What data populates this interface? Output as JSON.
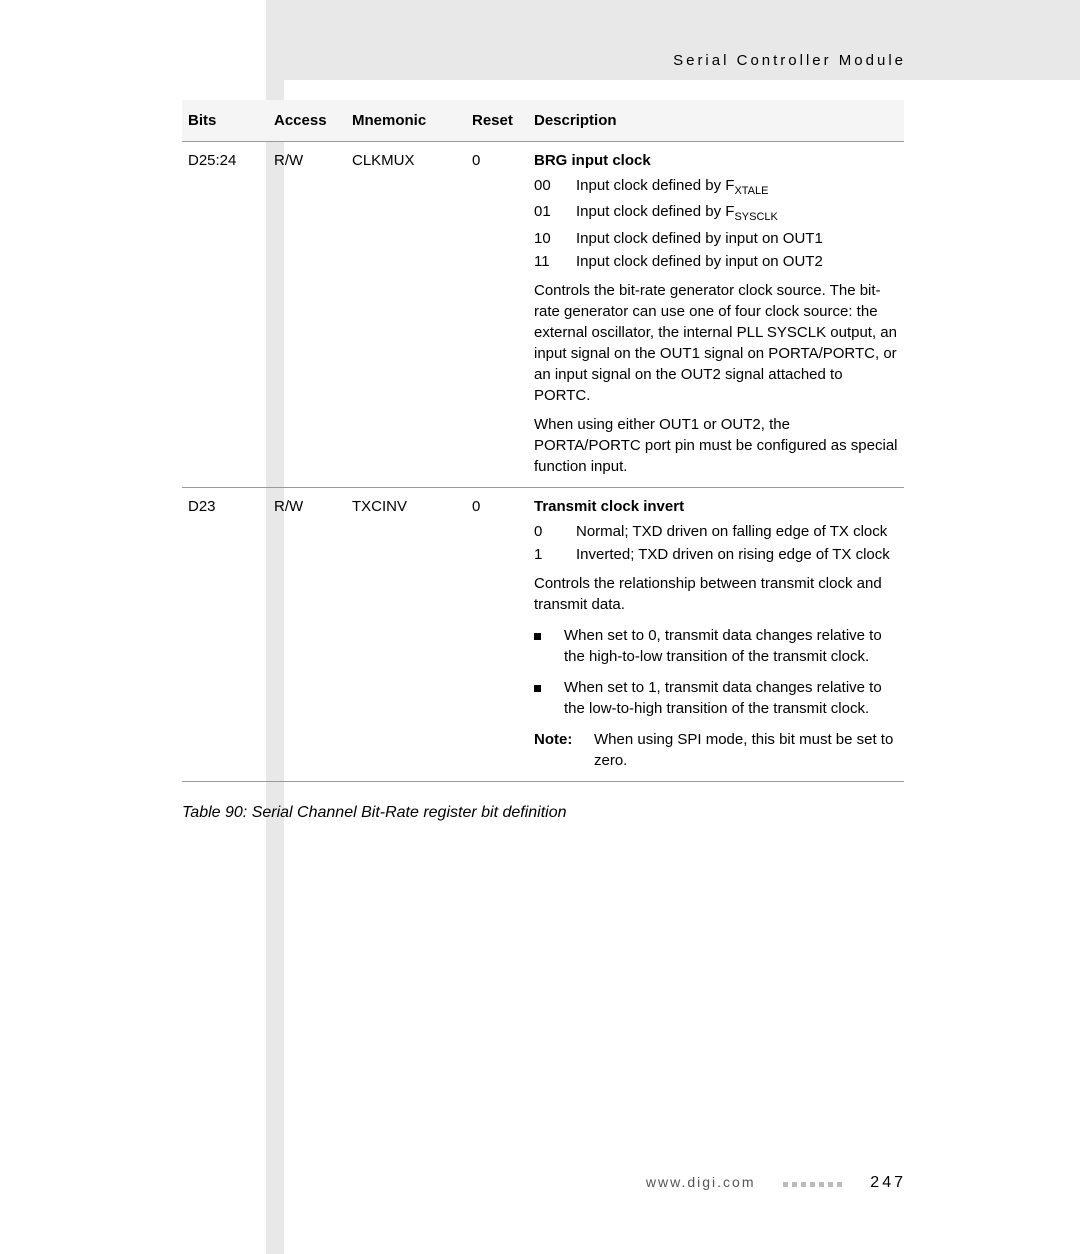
{
  "header": {
    "section_title": "Serial Controller Module"
  },
  "table": {
    "headers": {
      "bits": "Bits",
      "access": "Access",
      "mnemonic": "Mnemonic",
      "reset": "Reset",
      "description": "Description"
    },
    "rows": [
      {
        "bits": "D25:24",
        "access": "R/W",
        "mnemonic": "CLKMUX",
        "reset": "0",
        "desc_title": "BRG input clock",
        "opts": [
          {
            "code": "00",
            "text_pre": "Input clock defined by F",
            "sub": "XTALE",
            "text_post": ""
          },
          {
            "code": "01",
            "text_pre": "Input clock defined by F",
            "sub": "SYSCLK",
            "text_post": ""
          },
          {
            "code": "10",
            "text_pre": "Input clock defined by input on OUT1",
            "sub": "",
            "text_post": ""
          },
          {
            "code": "11",
            "text_pre": "Input clock defined by input on OUT2",
            "sub": "",
            "text_post": ""
          }
        ],
        "paras": [
          "Controls the bit-rate generator clock source. The bit-rate generator can use one of four clock source: the external oscillator, the internal PLL SYSCLK output, an input signal on the OUT1 signal on PORTA/PORTC, or an input signal on the OUT2 signal attached to PORTC.",
          "When using either OUT1 or OUT2, the PORTA/PORTC port pin must be configured as special function input."
        ]
      },
      {
        "bits": "D23",
        "access": "R/W",
        "mnemonic": "TXCINV",
        "reset": "0",
        "desc_title": "Transmit clock invert",
        "opts": [
          {
            "code": "0",
            "text_pre": "Normal; TXD driven on falling edge of TX clock",
            "sub": "",
            "text_post": ""
          },
          {
            "code": "1",
            "text_pre": "Inverted; TXD driven on rising edge of TX clock",
            "sub": "",
            "text_post": ""
          }
        ],
        "paras": [
          "Controls the relationship between transmit clock and transmit data."
        ],
        "bullets": [
          "When set to 0, transmit data changes relative to the high-to-low transition of the transmit clock.",
          "When set to 1, transmit data changes relative to the low-to-high transition of the transmit clock."
        ],
        "note": {
          "label": "Note:",
          "text": "When using SPI mode, this bit must be set to zero."
        }
      }
    ]
  },
  "caption": "Table 90: Serial Channel Bit-Rate register bit definition",
  "footer": {
    "url": "www.digi.com",
    "page": "247"
  }
}
